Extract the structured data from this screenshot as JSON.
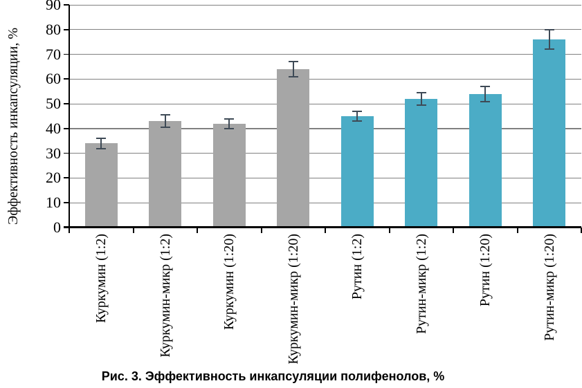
{
  "figure_caption": "Рис. 3. Эффективность инкапсуляции полифенолов, %",
  "chart_data": {
    "type": "bar",
    "title": "Рис. 3. Эффективность инкапсуляции полифенолов, %",
    "xlabel": "",
    "ylabel": "Эффективность инкапсуляции, %",
    "ylim": [
      0,
      90
    ],
    "ytick_step": 10,
    "yticks": [
      0,
      10,
      20,
      30,
      40,
      50,
      60,
      70,
      80,
      90
    ],
    "grid": true,
    "legend_position": "none",
    "categories": [
      "Куркумин (1:2)",
      "Куркумин-микр (1:2)",
      "Куркумин (1:20)",
      "Куркумин-микр (1:20)",
      "Рутин (1:2)",
      "Рутин-микр (1:2)",
      "Рутин (1:20)",
      "Рутин-микр (1:20)"
    ],
    "values": [
      34,
      43,
      42,
      64,
      45,
      52,
      54,
      76
    ],
    "errors": [
      2,
      2.5,
      2,
      3,
      2,
      2.5,
      3,
      4
    ],
    "bar_colors": [
      "#a6a6a6",
      "#a6a6a6",
      "#a6a6a6",
      "#a6a6a6",
      "#4bacc6",
      "#4bacc6",
      "#4bacc6",
      "#4bacc6"
    ],
    "color_groups": [
      {
        "name": "Куркумин",
        "color": "#a6a6a6"
      },
      {
        "name": "Рутин",
        "color": "#4bacc6"
      }
    ],
    "grid_color": "#808080",
    "axis_color": "#000000",
    "error_bar_color": "#3e4a56"
  }
}
